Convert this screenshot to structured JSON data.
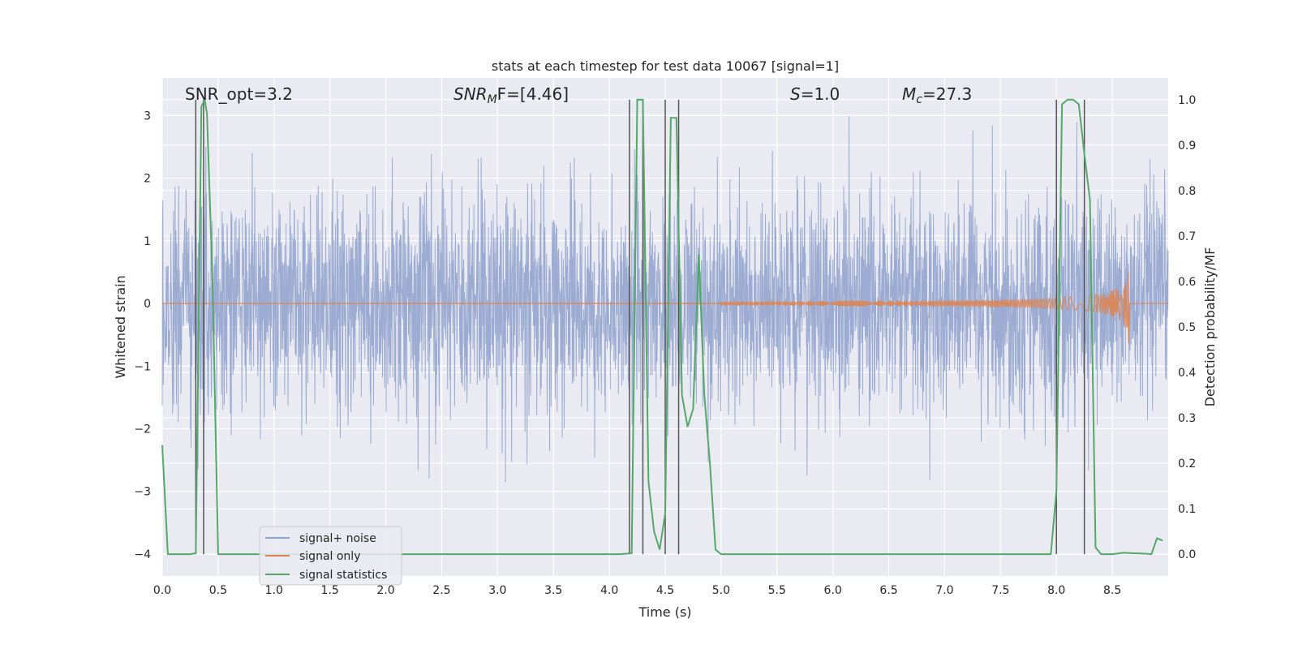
{
  "chart_data": {
    "type": "line",
    "title": "stats at each timestep for test data 10067 [signal=1]",
    "xlabel": "Time (s)",
    "ylabel": "Whitened strain",
    "ylabel_right": "Detection probability/MF",
    "xlim": [
      0,
      9.0
    ],
    "ylim": [
      -4.35,
      3.6
    ],
    "ylim_right": [
      -0.048,
      1.048
    ],
    "xticks": [
      0.0,
      0.5,
      1.0,
      1.5,
      2.0,
      2.5,
      3.0,
      3.5,
      4.0,
      4.5,
      5.0,
      5.5,
      6.0,
      6.5,
      7.0,
      7.5,
      8.0,
      8.5
    ],
    "yticks": [
      3,
      2,
      1,
      0,
      -1,
      -2,
      -3,
      -4
    ],
    "yticks_right": [
      1.0,
      0.9,
      0.8,
      0.7,
      0.6,
      0.5,
      0.4,
      0.3,
      0.2,
      0.1,
      0.0
    ],
    "grid": true,
    "legend_position": "lower-left",
    "annotations": {
      "snr_opt": "SNR_opt=3.2",
      "snr_mf_sym": "SNR",
      "snr_mf_sub": "M",
      "snr_mf_rest": "F=[4.46]",
      "s_sym": "S",
      "s_rest": "=1.0",
      "mc_sym": "M",
      "mc_sub": "c",
      "mc_rest": "=27.3"
    },
    "series": [
      {
        "name": "signal+ noise",
        "color": "#8da0cb",
        "kind": "noise",
        "envelope_std": 0.85
      },
      {
        "name": "signal only",
        "color": "#dd8452",
        "kind": "chirp",
        "merger_time": 8.65,
        "peak_amplitude": 0.75
      },
      {
        "name": "signal statistics",
        "color": "#55a868",
        "axis": "right",
        "x": [
          0.0,
          0.05,
          0.1,
          0.15,
          0.2,
          0.25,
          0.3,
          0.35,
          0.38,
          0.4,
          0.45,
          0.5,
          1.0,
          2.0,
          3.0,
          4.0,
          4.1,
          4.15,
          4.2,
          4.25,
          4.3,
          4.35,
          4.4,
          4.45,
          4.5,
          4.55,
          4.6,
          4.65,
          4.7,
          4.75,
          4.8,
          4.85,
          4.9,
          4.95,
          5.0,
          6.0,
          7.0,
          7.5,
          7.95,
          8.0,
          8.05,
          8.1,
          8.15,
          8.2,
          8.25,
          8.3,
          8.35,
          8.4,
          8.45,
          8.5,
          8.6,
          8.7,
          8.8,
          8.85,
          8.9,
          8.95
        ],
        "y": [
          0.24,
          0.0,
          0.0,
          0.0,
          0.0,
          0.0,
          0.002,
          0.985,
          1.0,
          0.97,
          0.6,
          0.0,
          0.0,
          0.0,
          0.0,
          0.0,
          0.0,
          0.001,
          0.002,
          1.0,
          1.0,
          0.16,
          0.05,
          0.01,
          0.09,
          0.96,
          0.96,
          0.35,
          0.28,
          0.32,
          0.66,
          0.35,
          0.2,
          0.01,
          0.0,
          0.0,
          0.0,
          0.0,
          0.0,
          0.14,
          0.99,
          1.0,
          1.0,
          0.99,
          0.88,
          0.78,
          0.015,
          0.0,
          0.0,
          0.0,
          0.003,
          0.002,
          0.001,
          0.0,
          0.035,
          0.03
        ]
      },
      {
        "name": "markers",
        "color": "#555555",
        "kind": "vlines",
        "x": [
          0.3,
          0.37,
          4.18,
          4.3,
          4.5,
          4.62,
          8.0,
          8.25
        ]
      }
    ]
  }
}
